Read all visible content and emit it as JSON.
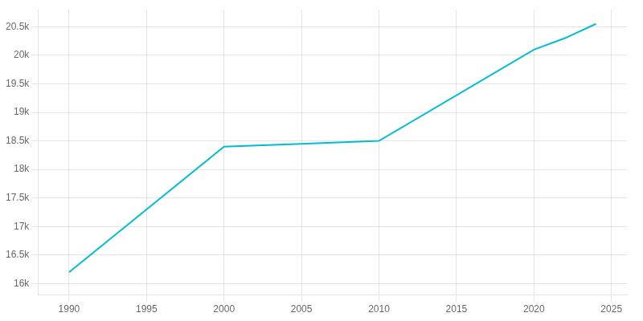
{
  "chart_data": {
    "type": "line",
    "x": [
      1990,
      2000,
      2005,
      2010,
      2020,
      2022,
      2024
    ],
    "values": [
      16200,
      18400,
      18450,
      18500,
      20100,
      20300,
      20550
    ],
    "color": "#00BCD4",
    "xlim": [
      1988,
      2026
    ],
    "ylim": [
      15800,
      20800
    ],
    "xticks": [
      1990,
      1995,
      2000,
      2005,
      2010,
      2015,
      2020,
      2025
    ],
    "yticks": [
      {
        "value": 16000,
        "label": "16k"
      },
      {
        "value": 16500,
        "label": "16.5k"
      },
      {
        "value": 17000,
        "label": "17k"
      },
      {
        "value": 17500,
        "label": "17.5k"
      },
      {
        "value": 18000,
        "label": "18k"
      },
      {
        "value": 18500,
        "label": "18.5k"
      },
      {
        "value": 19000,
        "label": "19k"
      },
      {
        "value": 19500,
        "label": "19.5k"
      },
      {
        "value": 20000,
        "label": "20k"
      },
      {
        "value": 20500,
        "label": "20.5k"
      }
    ],
    "grid": true
  }
}
